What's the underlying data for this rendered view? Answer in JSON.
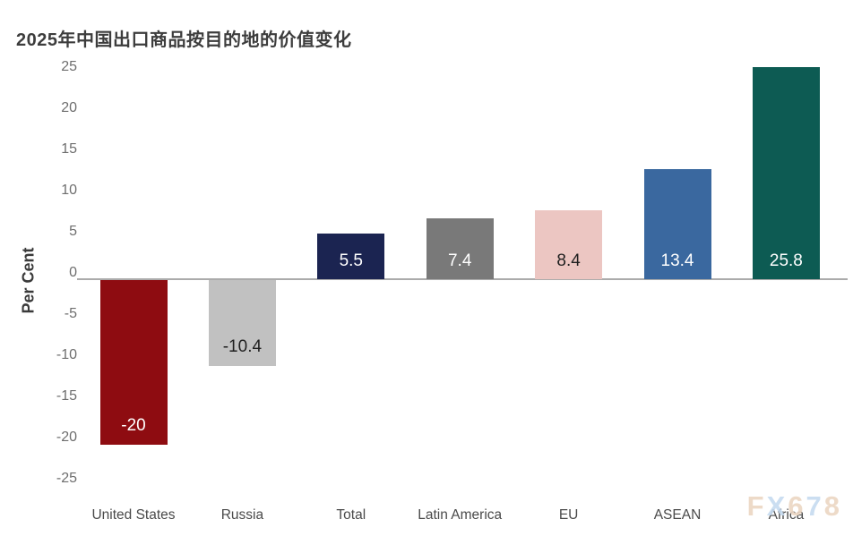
{
  "title": "2025年中国出口商品按目的地的价值变化",
  "y_axis_title": "Per Cent",
  "watermark": {
    "text": "FX678",
    "letters": [
      {
        "char": "F",
        "color": "#ecd6c3"
      },
      {
        "char": "X",
        "color": "#c6dbf0"
      },
      {
        "char": "6",
        "color": "#ecd6c3"
      },
      {
        "char": "7",
        "color": "#c6dbf0"
      },
      {
        "char": "8",
        "color": "#ecd6c3"
      }
    ]
  },
  "colors": {
    "title_text": "#3d3d3d",
    "tick_text": "#6e6e6e",
    "category_text": "#4a4a4a",
    "axis_line": "#ababab",
    "background": "#ffffff"
  },
  "chart_data": {
    "type": "bar",
    "title": "2025年中国出口商品按目的地的价值变化",
    "xlabel": "",
    "ylabel": "Per Cent",
    "ylim": [
      -25,
      25
    ],
    "yticks": [
      25,
      20,
      15,
      10,
      5,
      0,
      -5,
      -10,
      -15,
      -20,
      -25
    ],
    "grid": "zero-baseline-only",
    "legend": "none",
    "categories": [
      "United States",
      "Russia",
      "Total",
      "Latin America",
      "EU",
      "ASEAN",
      "Africa"
    ],
    "values": [
      -20,
      -10.4,
      5.5,
      7.4,
      8.4,
      13.4,
      25.8
    ],
    "value_labels": [
      "-20",
      "-10.4",
      "5.5",
      "7.4",
      "8.4",
      "13.4",
      "25.8"
    ],
    "bar_colors": [
      "#8e0c11",
      "#c1c1c1",
      "#1b2451",
      "#797979",
      "#ecc6c2",
      "#3a689f",
      "#0d5b53"
    ],
    "value_label_colors": [
      "#ffffff",
      "#1f1f1f",
      "#ffffff",
      "#ffffff",
      "#1f1f1f",
      "#ffffff",
      "#ffffff"
    ]
  }
}
